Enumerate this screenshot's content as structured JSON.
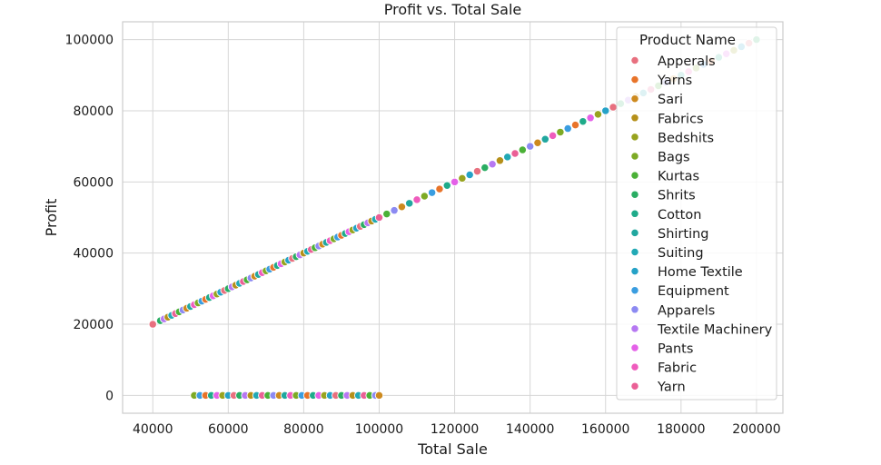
{
  "chart_data": {
    "type": "scatter",
    "title": "Profit vs. Total Sale",
    "xlabel": "Total Sale",
    "ylabel": "Profit",
    "xlim": [
      32000,
      207000
    ],
    "ylim": [
      -5000,
      105000
    ],
    "xticks": [
      40000,
      60000,
      80000,
      100000,
      120000,
      140000,
      160000,
      180000,
      200000
    ],
    "yticks": [
      0,
      20000,
      40000,
      60000,
      80000,
      100000
    ],
    "grid": true,
    "legend": {
      "title": "Product Name",
      "placement": "top-right",
      "entries": [
        {
          "name": "Apperals",
          "color": "#e8707f"
        },
        {
          "name": "Yarns",
          "color": "#e8742a"
        },
        {
          "name": "Sari",
          "color": "#cd8a1f"
        },
        {
          "name": "Fabrics",
          "color": "#b5901a"
        },
        {
          "name": "Bedshits",
          "color": "#98a31f"
        },
        {
          "name": "Bags",
          "color": "#7daa25"
        },
        {
          "name": "Kurtas",
          "color": "#4bb137"
        },
        {
          "name": "Shrits",
          "color": "#2aad63"
        },
        {
          "name": "Cotton",
          "color": "#1fab8a"
        },
        {
          "name": "Shirting",
          "color": "#21a79f"
        },
        {
          "name": "Suiting",
          "color": "#22a9b5"
        },
        {
          "name": "Home Textile",
          "color": "#25a2c7"
        },
        {
          "name": "Equipment",
          "color": "#3a9de0"
        },
        {
          "name": "Apparels",
          "color": "#8c8af2"
        },
        {
          "name": "Textile Machinery",
          "color": "#b678f2"
        },
        {
          "name": "Pants",
          "color": "#e461e8"
        },
        {
          "name": "Fabric",
          "color": "#ef5cbd"
        },
        {
          "name": "Yarn",
          "color": "#ea6096"
        }
      ]
    },
    "series": [
      {
        "description": "points along line Profit = 0.5 × Total Sale (colors cycle through legend categories)",
        "x": [
          40000,
          42000,
          43000,
          44000,
          45000,
          46000,
          47000,
          48000,
          49000,
          50000,
          51000,
          52000,
          53000,
          54000,
          55000,
          56000,
          57000,
          58000,
          59000,
          60000,
          61000,
          62000,
          63000,
          64000,
          65000,
          66000,
          67000,
          68000,
          69000,
          70000,
          71000,
          72000,
          73000,
          74000,
          75000,
          76000,
          77000,
          78000,
          79000,
          80000,
          81000,
          82000,
          83000,
          84000,
          85000,
          86000,
          87000,
          88000,
          89000,
          90000,
          91000,
          92000,
          93000,
          94000,
          95000,
          96000,
          97000,
          98000,
          99000,
          100000,
          102000,
          104000,
          106000,
          108000,
          110000,
          112000,
          114000,
          116000,
          118000,
          120000,
          122000,
          124000,
          126000,
          128000,
          130000,
          132000,
          134000,
          136000,
          138000,
          140000,
          142000,
          144000,
          146000,
          148000,
          150000,
          152000,
          154000,
          156000,
          158000,
          160000,
          162000,
          164000,
          166000,
          168000,
          170000,
          172000,
          174000,
          176000,
          178000,
          180000,
          182000,
          184000,
          186000,
          188000,
          190000,
          192000,
          194000,
          196000,
          198000,
          200000
        ],
        "y": [
          20000,
          21000,
          21500,
          22000,
          22500,
          23000,
          23500,
          24000,
          24500,
          25000,
          25500,
          26000,
          26500,
          27000,
          27500,
          28000,
          28500,
          29000,
          29500,
          30000,
          30500,
          31000,
          31500,
          32000,
          32500,
          33000,
          33500,
          34000,
          34500,
          35000,
          35500,
          36000,
          36500,
          37000,
          37500,
          38000,
          38500,
          39000,
          39500,
          40000,
          40500,
          41000,
          41500,
          42000,
          42500,
          43000,
          43500,
          44000,
          44500,
          45000,
          45500,
          46000,
          46500,
          47000,
          47500,
          48000,
          48500,
          49000,
          49500,
          50000,
          51000,
          52000,
          53000,
          54000,
          55000,
          56000,
          57000,
          58000,
          59000,
          60000,
          61000,
          62000,
          63000,
          64000,
          65000,
          66000,
          67000,
          68000,
          69000,
          70000,
          71000,
          72000,
          73000,
          74000,
          75000,
          76000,
          77000,
          78000,
          79000,
          80000,
          81000,
          82000,
          83000,
          84000,
          85000,
          86000,
          87000,
          88000,
          89000,
          90000,
          91000,
          92000,
          93000,
          94000,
          95000,
          96000,
          97000,
          98000,
          99000,
          100000
        ]
      },
      {
        "description": "points at Profit = 0",
        "x": [
          51000,
          52500,
          54000,
          55500,
          57000,
          58500,
          60000,
          61500,
          63000,
          64500,
          66000,
          67500,
          69000,
          70500,
          72000,
          73500,
          75000,
          76500,
          78000,
          79500,
          81000,
          82500,
          84000,
          85500,
          87000,
          88500,
          90000,
          91500,
          93000,
          94500,
          96000,
          97500,
          99000,
          100000
        ],
        "y": [
          0,
          0,
          0,
          0,
          0,
          0,
          0,
          0,
          0,
          0,
          0,
          0,
          0,
          0,
          0,
          0,
          0,
          0,
          0,
          0,
          0,
          0,
          0,
          0,
          0,
          0,
          0,
          0,
          0,
          0,
          0,
          0,
          0,
          0
        ]
      }
    ]
  }
}
